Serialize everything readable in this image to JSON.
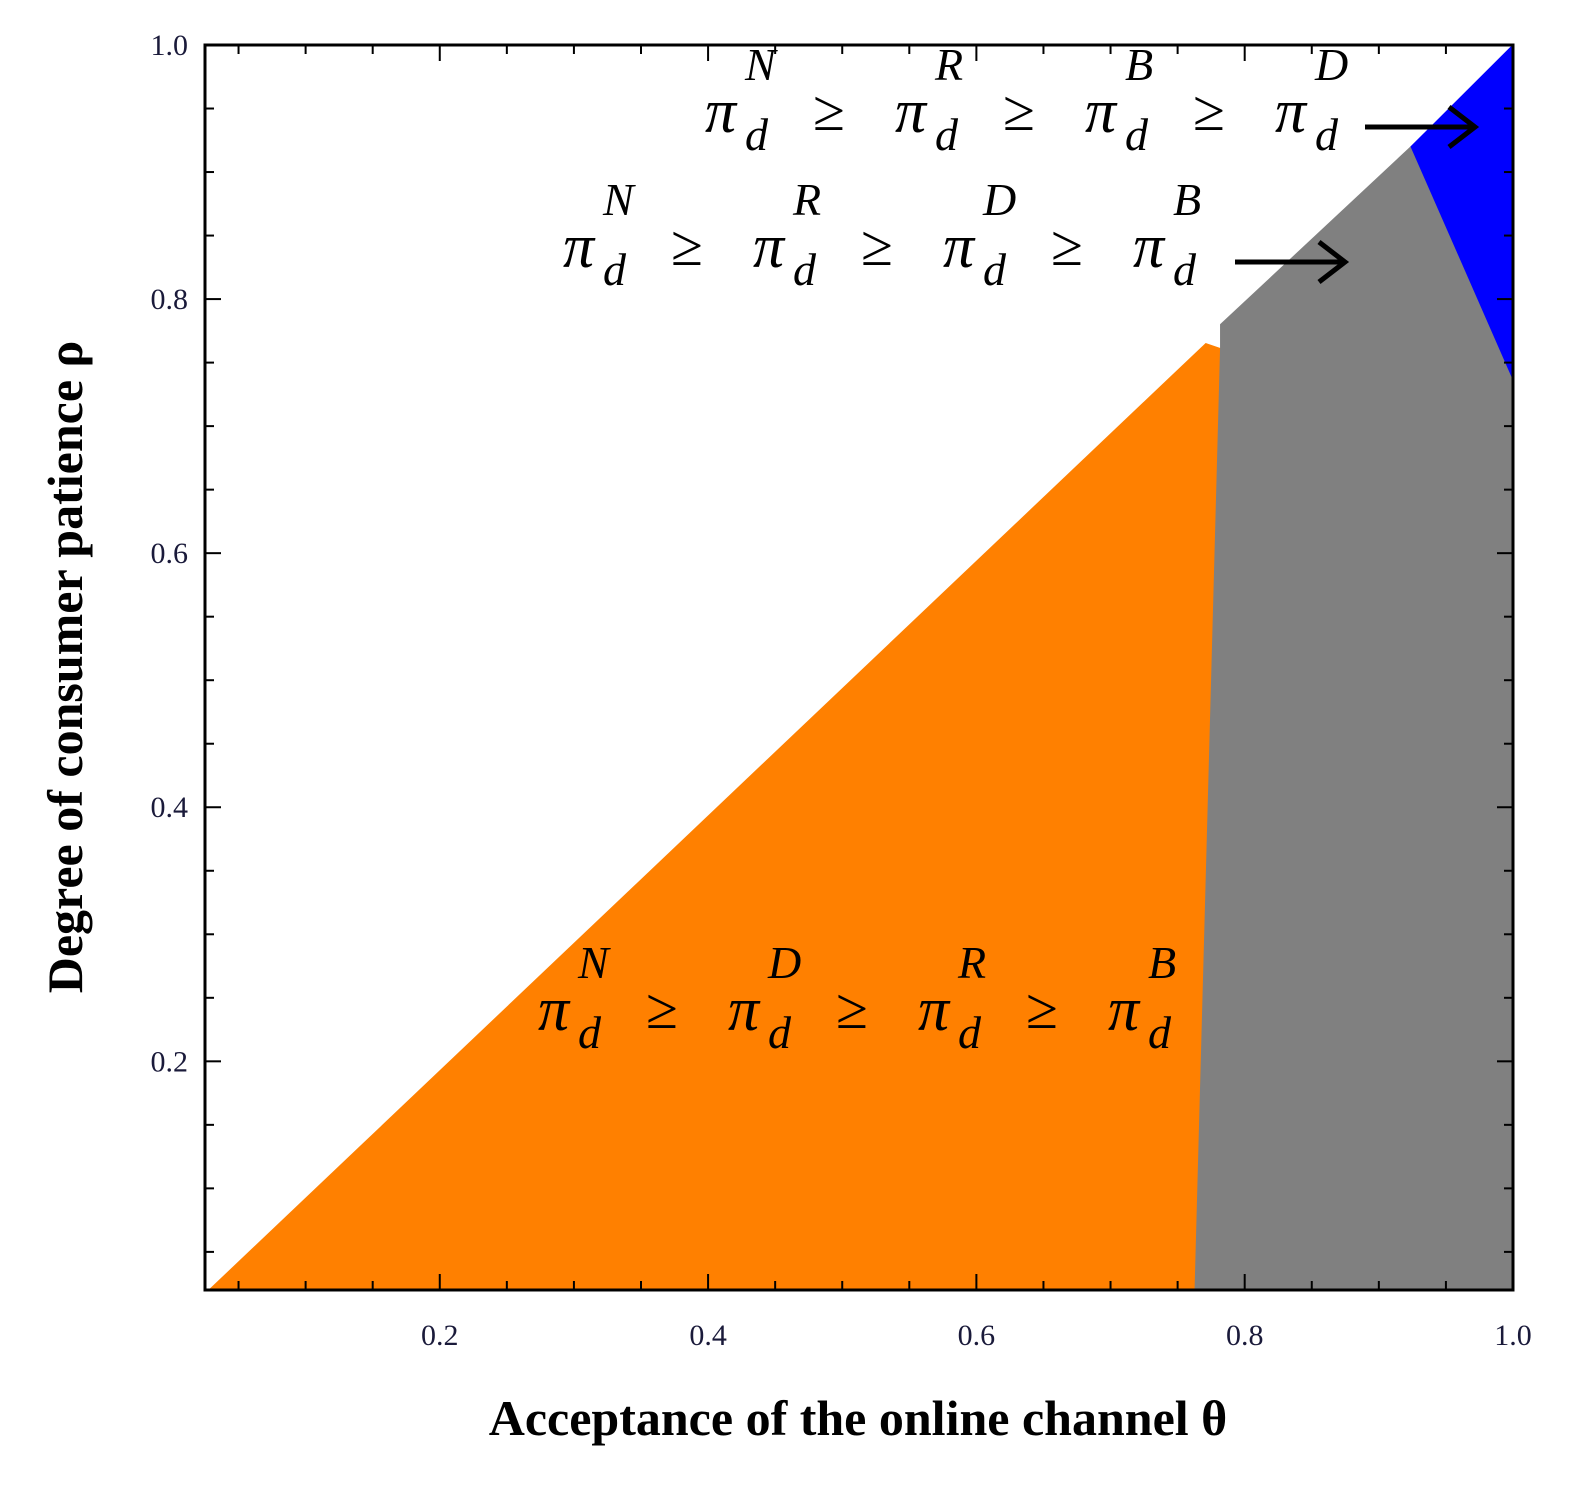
{
  "chart_data": {
    "type": "region",
    "x_label": "Acceptance of the online channel θ",
    "y_label": "Degree of consumer patience ρ",
    "xlim": [
      0.025,
      1
    ],
    "ylim": [
      0.02,
      1
    ],
    "xticks": [
      0.2,
      0.4,
      0.6,
      0.8,
      {
        "value": 1,
        "label": "1.0"
      }
    ],
    "yticks": [
      0.2,
      0.4,
      0.6,
      0.8,
      {
        "value": 1,
        "label": "1.0"
      }
    ],
    "minor_xticks": [
      0.05,
      0.1,
      0.15,
      0.25,
      0.3,
      0.35,
      0.45,
      0.5,
      0.55,
      0.65,
      0.7,
      0.75,
      0.85,
      0.9,
      0.95
    ],
    "minor_yticks": [
      0.05,
      0.1,
      0.15,
      0.25,
      0.3,
      0.35,
      0.45,
      0.5,
      0.55,
      0.65,
      0.7,
      0.75,
      0.85,
      0.9,
      0.95
    ],
    "regions": [
      {
        "color": "#ff8000",
        "x": [
          0.028,
          0.771,
          0.782,
          0.763
        ],
        "y": [
          0.02,
          0.765,
          0.761,
          0.02
        ]
      },
      {
        "color": "#808080",
        "x": [
          0.763,
          0.782,
          0.782,
          0.924,
          0.961,
          1,
          1
        ],
        "y": [
          0.02,
          0.761,
          0.78,
          0.92,
          0.831,
          0.737,
          0.02
        ]
      },
      {
        "color": "#0000ff",
        "x": [
          0.924,
          1,
          1,
          0.961
        ],
        "y": [
          0.92,
          1,
          0.737,
          0.831
        ]
      }
    ],
    "annotations": [
      {
        "base": "π",
        "sub": "d",
        "relation": "≥",
        "sups": [
          "N",
          "R",
          "B",
          "D"
        ]
      },
      {
        "base": "π",
        "sub": "d",
        "relation": "≥",
        "sups": [
          "N",
          "R",
          "D",
          "B"
        ]
      },
      {
        "base": "π",
        "sub": "d",
        "relation": "≥",
        "sups": [
          "N",
          "D",
          "R",
          "B"
        ]
      }
    ]
  }
}
